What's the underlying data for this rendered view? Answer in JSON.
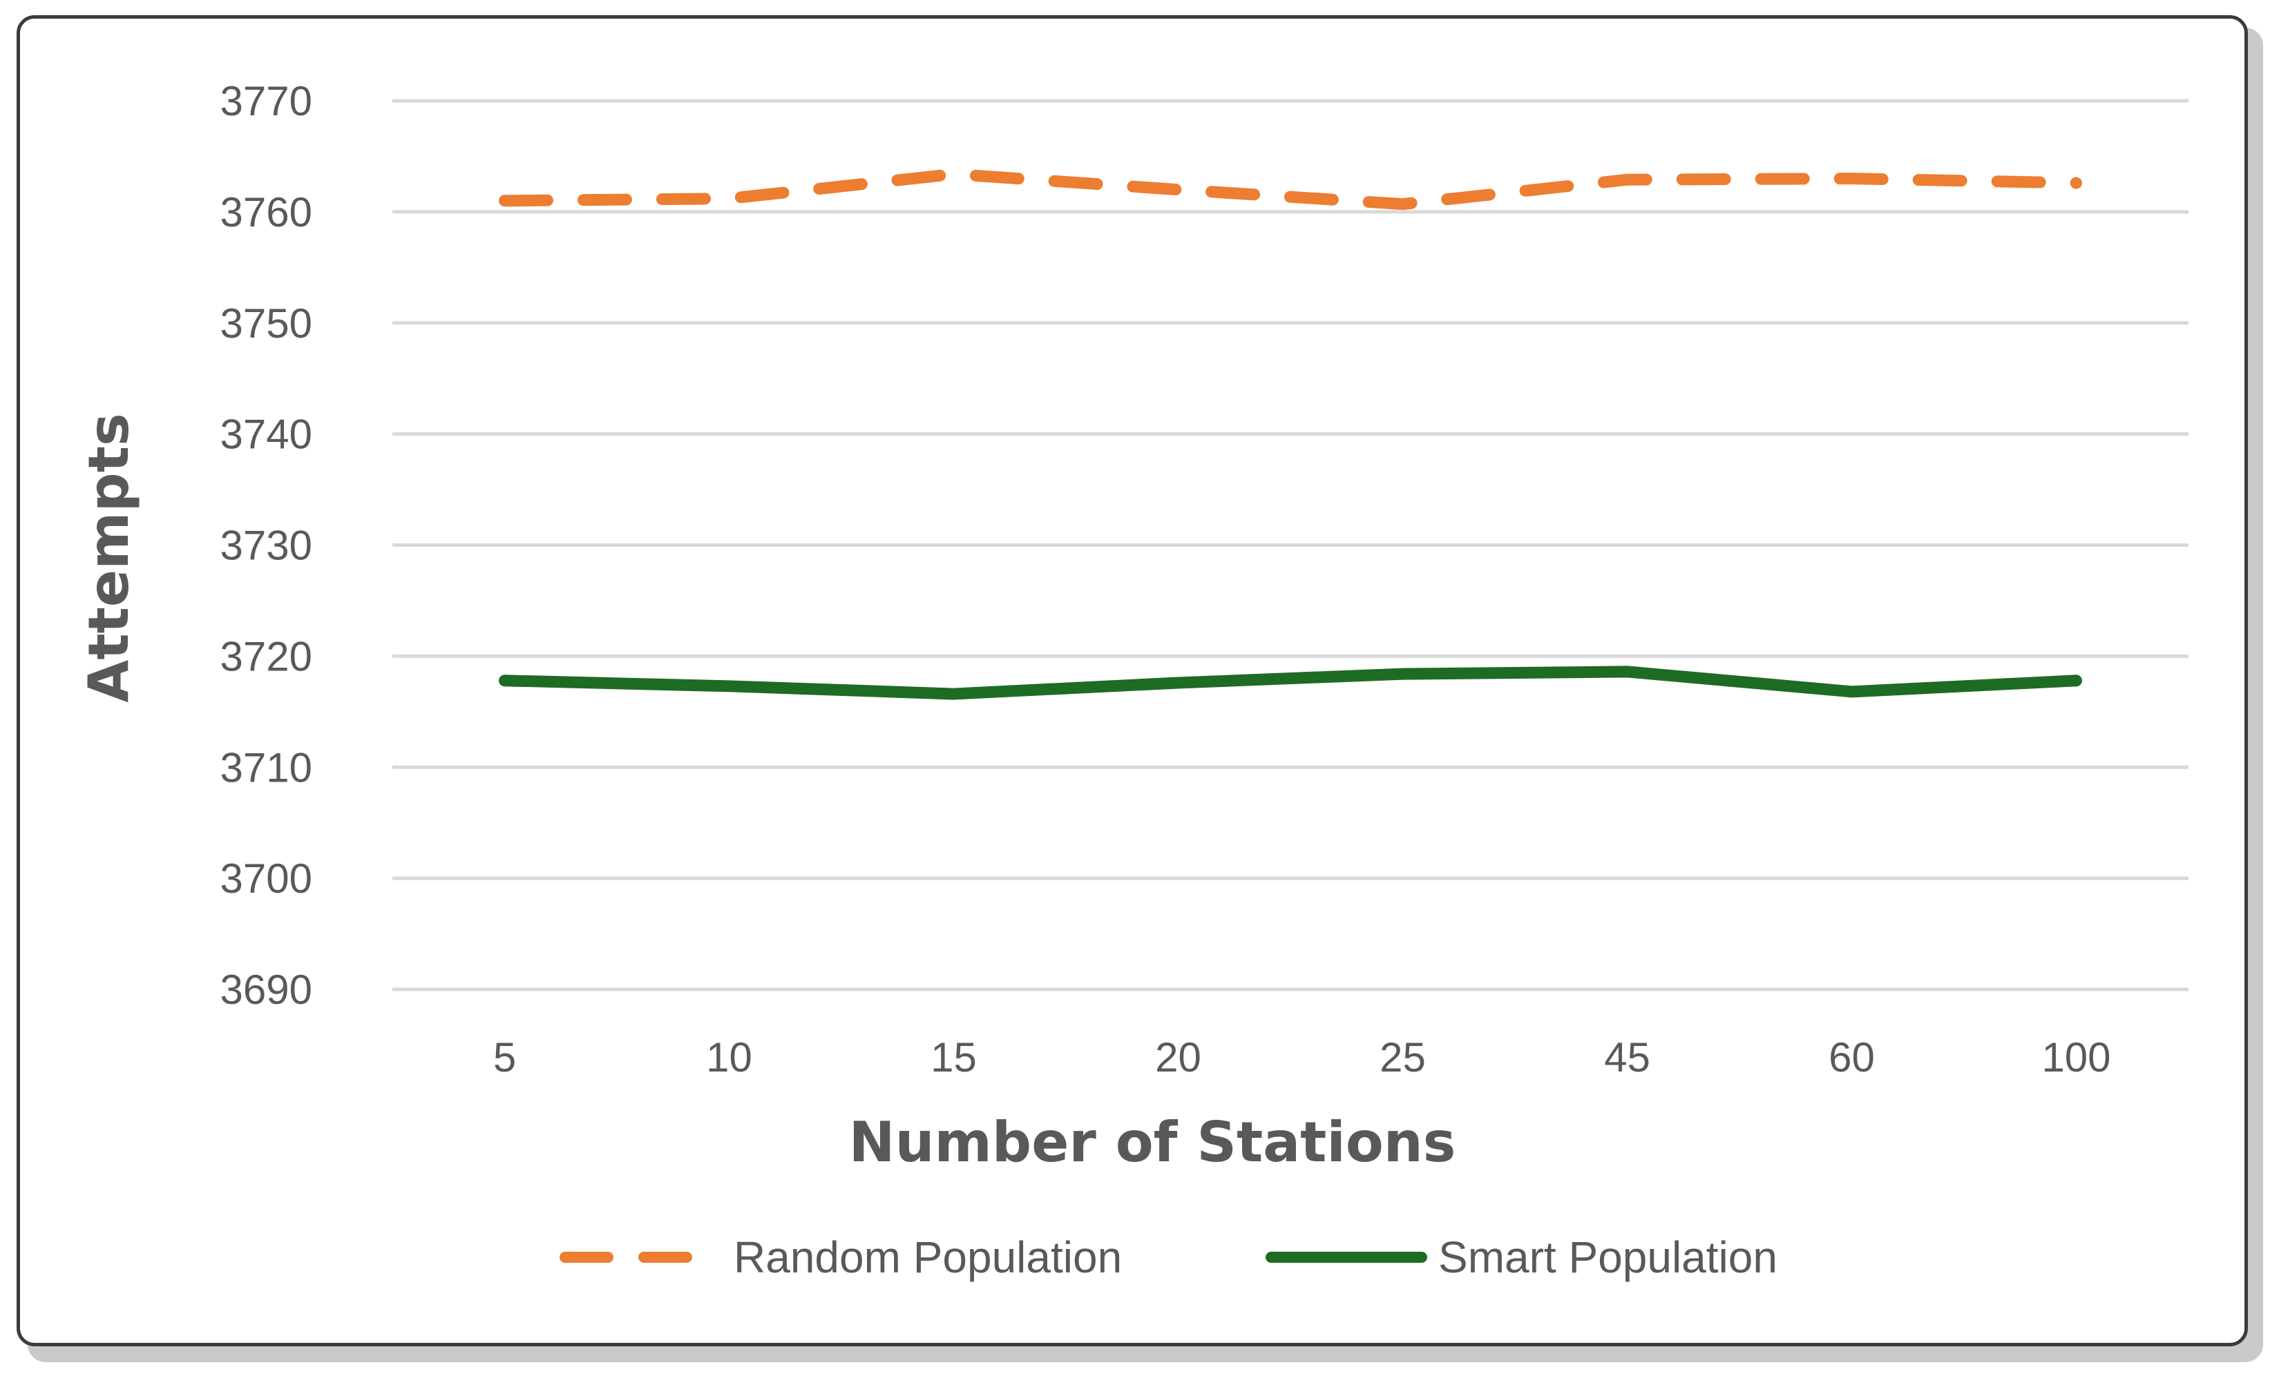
{
  "chart_data": {
    "type": "line",
    "title": "",
    "xlabel": "Number of Stations",
    "ylabel": "Attempts",
    "categories": [
      "5",
      "10",
      "15",
      "20",
      "25",
      "45",
      "60",
      "100"
    ],
    "ylim": [
      3690,
      3770
    ],
    "yticks": [
      3690,
      3700,
      3710,
      3720,
      3730,
      3740,
      3750,
      3760,
      3770
    ],
    "grid": true,
    "legend_position": "bottom",
    "series": [
      {
        "name": "Random Population",
        "values": [
          3761.0,
          3761.2,
          3763.4,
          3762.0,
          3760.7,
          3762.9,
          3763.0,
          3762.6
        ],
        "color": "#ED7D31",
        "style": "dashed"
      },
      {
        "name": "Smart Population",
        "values": [
          3717.8,
          3717.3,
          3716.6,
          3717.6,
          3718.4,
          3718.6,
          3716.8,
          3717.8
        ],
        "color": "#1E6B24",
        "style": "solid"
      }
    ]
  }
}
